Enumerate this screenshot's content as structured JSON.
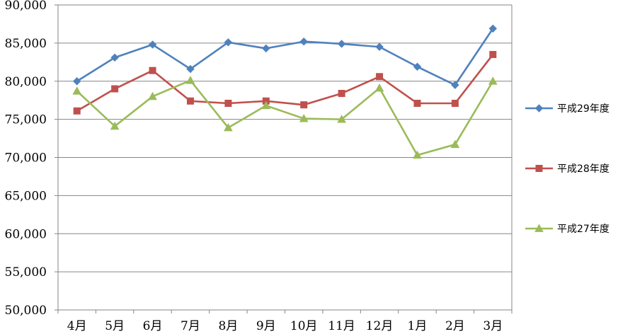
{
  "chart_data": {
    "type": "line",
    "title": "",
    "xlabel": "",
    "ylabel": "",
    "ylim": [
      50000,
      90000
    ],
    "y_step": 5000,
    "y_tick_labels": [
      "50,000",
      "55,000",
      "60,000",
      "65,000",
      "70,000",
      "75,000",
      "80,000",
      "85,000",
      "90,000"
    ],
    "categories": [
      "4月",
      "5月",
      "6月",
      "7月",
      "8月",
      "9月",
      "10月",
      "11月",
      "12月",
      "1月",
      "2月",
      "3月"
    ],
    "grid": true,
    "legend_position": "right",
    "series": [
      {
        "name": "平成29年度",
        "color": "#4F81BD",
        "marker": "diamond",
        "values": [
          80000,
          83100,
          84800,
          81600,
          85100,
          84300,
          85200,
          84900,
          84500,
          81900,
          79500,
          86900
        ]
      },
      {
        "name": "平成28年度",
        "color": "#C0504D",
        "marker": "square",
        "values": [
          76100,
          79000,
          81400,
          77400,
          77100,
          77400,
          76900,
          78400,
          80600,
          77100,
          77100,
          83500
        ]
      },
      {
        "name": "平成27年度",
        "color": "#9BBB59",
        "marker": "triangle",
        "values": [
          78700,
          74100,
          78000,
          80100,
          73900,
          76800,
          75100,
          75000,
          79100,
          70300,
          71700,
          80000
        ]
      }
    ]
  }
}
